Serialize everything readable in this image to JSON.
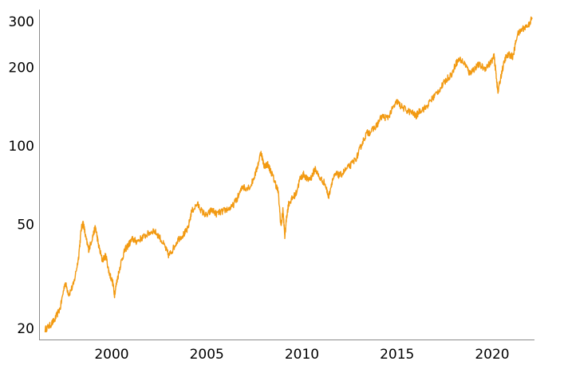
{
  "chart_data": {
    "type": "line",
    "title": "",
    "xlabel": "",
    "ylabel": "",
    "y_scale": "log",
    "grid": false,
    "legend": "none",
    "xlim": [
      1996.3,
      2022.5
    ],
    "ylim": [
      18.5,
      330
    ],
    "x_ticks": [
      2000,
      2005,
      2010,
      2015,
      2020
    ],
    "x_tick_labels": [
      "2000",
      "2005",
      "2010",
      "2015",
      "2020"
    ],
    "y_ticks": [
      20,
      50,
      100,
      200,
      300
    ],
    "y_tick_labels": [
      "20",
      "50",
      "100",
      "200",
      "300"
    ],
    "line_color": "#f29a12",
    "series": [
      {
        "x": [
          1996.5,
          1996.75,
          1997.0,
          1997.3,
          1997.55,
          1997.75,
          1998.0,
          1998.25,
          1998.4,
          1998.5,
          1998.65,
          1998.8,
          1999.0,
          1999.15,
          1999.3,
          1999.5,
          1999.7,
          1999.85,
          2000.05,
          2000.15,
          2000.3,
          2000.5,
          2000.7,
          2000.9,
          2001.1,
          2001.3,
          2001.6,
          2001.9,
          2002.2,
          2002.5,
          2002.8,
          2003.0,
          2003.2,
          2003.5,
          2003.8,
          2004.0,
          2004.2,
          2004.5,
          2004.75,
          2005.0,
          2005.25,
          2005.5,
          2005.8,
          2006.0,
          2006.3,
          2006.6,
          2006.9,
          2007.0,
          2007.3,
          2007.6,
          2007.85,
          2008.0,
          2008.2,
          2008.4,
          2008.6,
          2008.75,
          2008.9,
          2009.0,
          2009.1,
          2009.2,
          2009.3,
          2009.5,
          2009.7,
          2009.9,
          2010.1,
          2010.3,
          2010.5,
          2010.7,
          2010.9,
          2011.2,
          2011.4,
          2011.6,
          2011.8,
          2012.0,
          2012.3,
          2012.6,
          2012.9,
          2013.1,
          2013.4,
          2013.6,
          2013.9,
          2014.2,
          2014.5,
          2014.8,
          2015.0,
          2015.2,
          2015.5,
          2015.8,
          2016.0,
          2016.2,
          2016.5,
          2016.8,
          2017.0,
          2017.3,
          2017.6,
          2017.9,
          2018.1,
          2018.3,
          2018.6,
          2018.8,
          2019.0,
          2019.3,
          2019.6,
          2019.9,
          2020.1,
          2020.2,
          2020.3,
          2020.5,
          2020.7,
          2020.9,
          2021.1,
          2021.3,
          2021.6,
          2021.9,
          2022.1
        ],
        "y": [
          19.8,
          20.5,
          21.5,
          24.0,
          30.0,
          27.0,
          29.5,
          37.0,
          48.0,
          51.0,
          44.0,
          40.0,
          45.0,
          49.0,
          42.0,
          36.5,
          38.0,
          33.0,
          30.0,
          27.0,
          31.0,
          36.0,
          40.0,
          42.0,
          44.0,
          43.0,
          44.5,
          46.0,
          47.5,
          45.0,
          41.0,
          38.0,
          40.0,
          44.0,
          46.0,
          48.0,
          56.0,
          60.0,
          56.0,
          54.0,
          57.0,
          55.0,
          56.0,
          57.0,
          58.0,
          63.0,
          70.0,
          69.0,
          70.0,
          80.0,
          95.0,
          84.0,
          85.0,
          79.0,
          72.0,
          67.0,
          49.0,
          57.0,
          45.0,
          54.0,
          60.0,
          63.0,
          66.0,
          75.0,
          78.0,
          74.0,
          76.0,
          82.0,
          76.0,
          72.0,
          64.0,
          74.0,
          78.0,
          77.0,
          81.0,
          85.0,
          91.0,
          100.0,
          112.0,
          113.0,
          119.0,
          130.0,
          128.0,
          140.0,
          148.0,
          142.0,
          137.0,
          134.0,
          130.0,
          137.0,
          140.0,
          150.0,
          157.0,
          167.0,
          180.0,
          190.0,
          208.0,
          215.0,
          205.0,
          190.0,
          196.0,
          205.0,
          198.0,
          208.0,
          220.0,
          190.0,
          160.0,
          192.0,
          218.0,
          224.0,
          220.0,
          265.0,
          282.0,
          290.0,
          310.0
        ]
      }
    ]
  }
}
